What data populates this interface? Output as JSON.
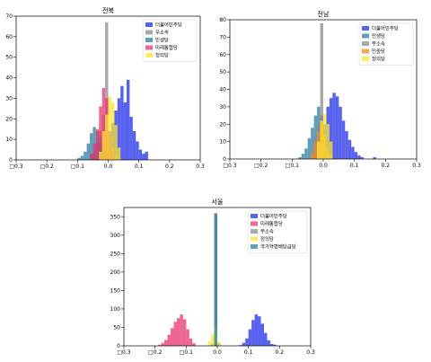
{
  "chart_data": [
    {
      "type": "histogram",
      "title": "전북",
      "xlim": [
        -0.3,
        0.3
      ],
      "ylim": [
        0,
        70
      ],
      "xticks": [
        -0.3,
        -0.2,
        -0.1,
        0.0,
        0.1,
        0.2,
        0.3
      ],
      "xtick_labels": [
        "□0.3",
        "□0.2",
        "□0.1",
        "0.0",
        "0.1",
        "0.2",
        "0.3"
      ],
      "yticks": [
        0,
        10,
        20,
        30,
        40,
        50,
        60,
        70
      ],
      "ytick_labels": [
        "0",
        "10",
        "20",
        "30",
        "40",
        "50",
        "60",
        "70"
      ],
      "bin_width": 0.01,
      "legend": "top-right",
      "series": [
        {
          "name": "더불어민주당",
          "color": "#1f2de8",
          "bins": [
            [
              0.0,
              14
            ],
            [
              0.01,
              18
            ],
            [
              0.02,
              24
            ],
            [
              0.03,
              30
            ],
            [
              0.04,
              36
            ],
            [
              0.05,
              28
            ],
            [
              0.06,
              39
            ],
            [
              0.07,
              21
            ],
            [
              0.08,
              14
            ],
            [
              0.09,
              9
            ],
            [
              0.1,
              5
            ],
            [
              0.11,
              3
            ],
            [
              0.12,
              4
            ]
          ]
        },
        {
          "name": "무소속",
          "color": "#8c8c8c",
          "bins": [
            [
              -0.06,
              2
            ],
            [
              -0.05,
              4
            ],
            [
              -0.04,
              8
            ],
            [
              -0.03,
              14
            ],
            [
              -0.02,
              22
            ],
            [
              -0.01,
              67
            ],
            [
              0.0,
              12
            ],
            [
              0.01,
              6
            ],
            [
              0.02,
              3
            ],
            [
              0.03,
              2
            ]
          ]
        },
        {
          "name": "민생당",
          "color": "#2e7ea3",
          "bins": [
            [
              -0.1,
              1
            ],
            [
              -0.09,
              2
            ],
            [
              -0.08,
              4
            ],
            [
              -0.07,
              8
            ],
            [
              -0.06,
              13
            ],
            [
              -0.05,
              16
            ],
            [
              -0.04,
              14
            ],
            [
              -0.03,
              11
            ],
            [
              -0.02,
              6
            ],
            [
              -0.01,
              3
            ]
          ]
        },
        {
          "name": "미래통합당",
          "color": "#e8336e",
          "bins": [
            [
              -0.06,
              3
            ],
            [
              -0.05,
              8
            ],
            [
              -0.04,
              15
            ],
            [
              -0.03,
              26
            ],
            [
              -0.02,
              35
            ],
            [
              -0.01,
              30
            ],
            [
              0.0,
              12
            ],
            [
              0.01,
              4
            ]
          ]
        },
        {
          "name": "정의당",
          "color": "#ffe62e",
          "bins": [
            [
              -0.03,
              4
            ],
            [
              -0.02,
              14
            ],
            [
              -0.01,
              22
            ],
            [
              0.0,
              31
            ],
            [
              0.01,
              28
            ],
            [
              0.02,
              17
            ],
            [
              0.03,
              6
            ]
          ]
        }
      ]
    },
    {
      "type": "histogram",
      "title": "전남",
      "xlim": [
        -0.3,
        0.3
      ],
      "ylim": [
        0,
        80
      ],
      "xticks": [
        -0.3,
        -0.2,
        -0.1,
        0.0,
        0.1,
        0.2,
        0.3
      ],
      "xtick_labels": [
        "□0.3",
        "□0.2",
        "□0.1",
        "0.0",
        "0.1",
        "0.2",
        "0.3"
      ],
      "yticks": [
        0,
        10,
        20,
        30,
        40,
        50,
        60,
        70,
        80
      ],
      "ytick_labels": [
        "0",
        "10",
        "20",
        "30",
        "40",
        "50",
        "60",
        "70",
        "80"
      ],
      "bin_width": 0.01,
      "legend": "top-right",
      "series": [
        {
          "name": "더불어민주당",
          "color": "#1f2de8",
          "bins": [
            [
              -0.01,
              12
            ],
            [
              0.0,
              20
            ],
            [
              0.01,
              30
            ],
            [
              0.02,
              35
            ],
            [
              0.03,
              38
            ],
            [
              0.04,
              36
            ],
            [
              0.05,
              30
            ],
            [
              0.06,
              22
            ],
            [
              0.07,
              16
            ],
            [
              0.08,
              11
            ],
            [
              0.09,
              7
            ],
            [
              0.1,
              4
            ],
            [
              0.11,
              2
            ],
            [
              0.12,
              1
            ],
            [
              0.16,
              1
            ]
          ]
        },
        {
          "name": "민생당",
          "color": "#2e7ea3",
          "bins": [
            [
              -0.08,
              1
            ],
            [
              -0.07,
              3
            ],
            [
              -0.06,
              6
            ],
            [
              -0.05,
              12
            ],
            [
              -0.04,
              18
            ],
            [
              -0.03,
              25
            ],
            [
              -0.02,
              30
            ],
            [
              -0.01,
              25
            ],
            [
              0.0,
              12
            ],
            [
              0.01,
              5
            ],
            [
              0.02,
              2
            ]
          ]
        },
        {
          "name": "무소속",
          "color": "#8c8c8c",
          "bins": [
            [
              -0.04,
              4
            ],
            [
              -0.03,
              12
            ],
            [
              -0.02,
              20
            ],
            [
              -0.01,
              78
            ],
            [
              0.0,
              14
            ],
            [
              0.01,
              6
            ],
            [
              0.02,
              3
            ]
          ]
        },
        {
          "name": "민중당",
          "color": "#f08a24",
          "bins": [
            [
              -0.04,
              4
            ],
            [
              -0.03,
              10
            ],
            [
              -0.02,
              16
            ],
            [
              -0.01,
              20
            ],
            [
              0.0,
              12
            ],
            [
              0.01,
              4
            ]
          ]
        },
        {
          "name": "정의당",
          "color": "#ffe62e",
          "bins": [
            [
              -0.02,
              10
            ],
            [
              -0.01,
              22
            ],
            [
              0.0,
              26
            ],
            [
              0.01,
              20
            ],
            [
              0.02,
              10
            ]
          ]
        }
      ]
    },
    {
      "type": "histogram",
      "title": "서울",
      "xlim": [
        -0.3,
        0.3
      ],
      "ylim": [
        0,
        375
      ],
      "xticks": [
        -0.3,
        -0.2,
        -0.1,
        0.0,
        0.1,
        0.2,
        0.3
      ],
      "xtick_labels": [
        "□0.3",
        "□0.2",
        "□0.1",
        "0.0",
        "0.1",
        "0.2",
        "0.3"
      ],
      "yticks": [
        0,
        50,
        100,
        150,
        200,
        250,
        300,
        350
      ],
      "ytick_labels": [
        "0",
        "50",
        "100",
        "150",
        "200",
        "250",
        "300",
        "350"
      ],
      "bin_width": 0.01,
      "legend": "top-right",
      "series": [
        {
          "name": "더불어민주당",
          "color": "#1f2de8",
          "bins": [
            [
              0.07,
              2
            ],
            [
              0.08,
              8
            ],
            [
              0.09,
              20
            ],
            [
              0.1,
              45
            ],
            [
              0.11,
              70
            ],
            [
              0.12,
              85
            ],
            [
              0.13,
              80
            ],
            [
              0.14,
              60
            ],
            [
              0.15,
              35
            ],
            [
              0.16,
              15
            ],
            [
              0.17,
              5
            ],
            [
              0.18,
              3
            ]
          ]
        },
        {
          "name": "미래통합당",
          "color": "#e8336e",
          "bins": [
            [
              -0.19,
              3
            ],
            [
              -0.18,
              8
            ],
            [
              -0.17,
              16
            ],
            [
              -0.16,
              30
            ],
            [
              -0.15,
              48
            ],
            [
              -0.14,
              65
            ],
            [
              -0.13,
              75
            ],
            [
              -0.12,
              85
            ],
            [
              -0.11,
              72
            ],
            [
              -0.1,
              45
            ],
            [
              -0.09,
              20
            ],
            [
              -0.08,
              7
            ]
          ]
        },
        {
          "name": "무소속",
          "color": "#8c8c8c",
          "bins": [
            [
              -0.02,
              6
            ],
            [
              -0.01,
              360
            ],
            [
              0.0,
              8
            ]
          ]
        },
        {
          "name": "정의당",
          "color": "#ffe62e",
          "bins": [
            [
              -0.03,
              12
            ],
            [
              -0.02,
              30
            ],
            [
              -0.01,
              55
            ],
            [
              0.0,
              10
            ]
          ]
        },
        {
          "name": "국가혁명배당금당",
          "color": "#2e7ea3",
          "bins": [
            [
              -0.01,
              358
            ]
          ]
        }
      ]
    }
  ]
}
